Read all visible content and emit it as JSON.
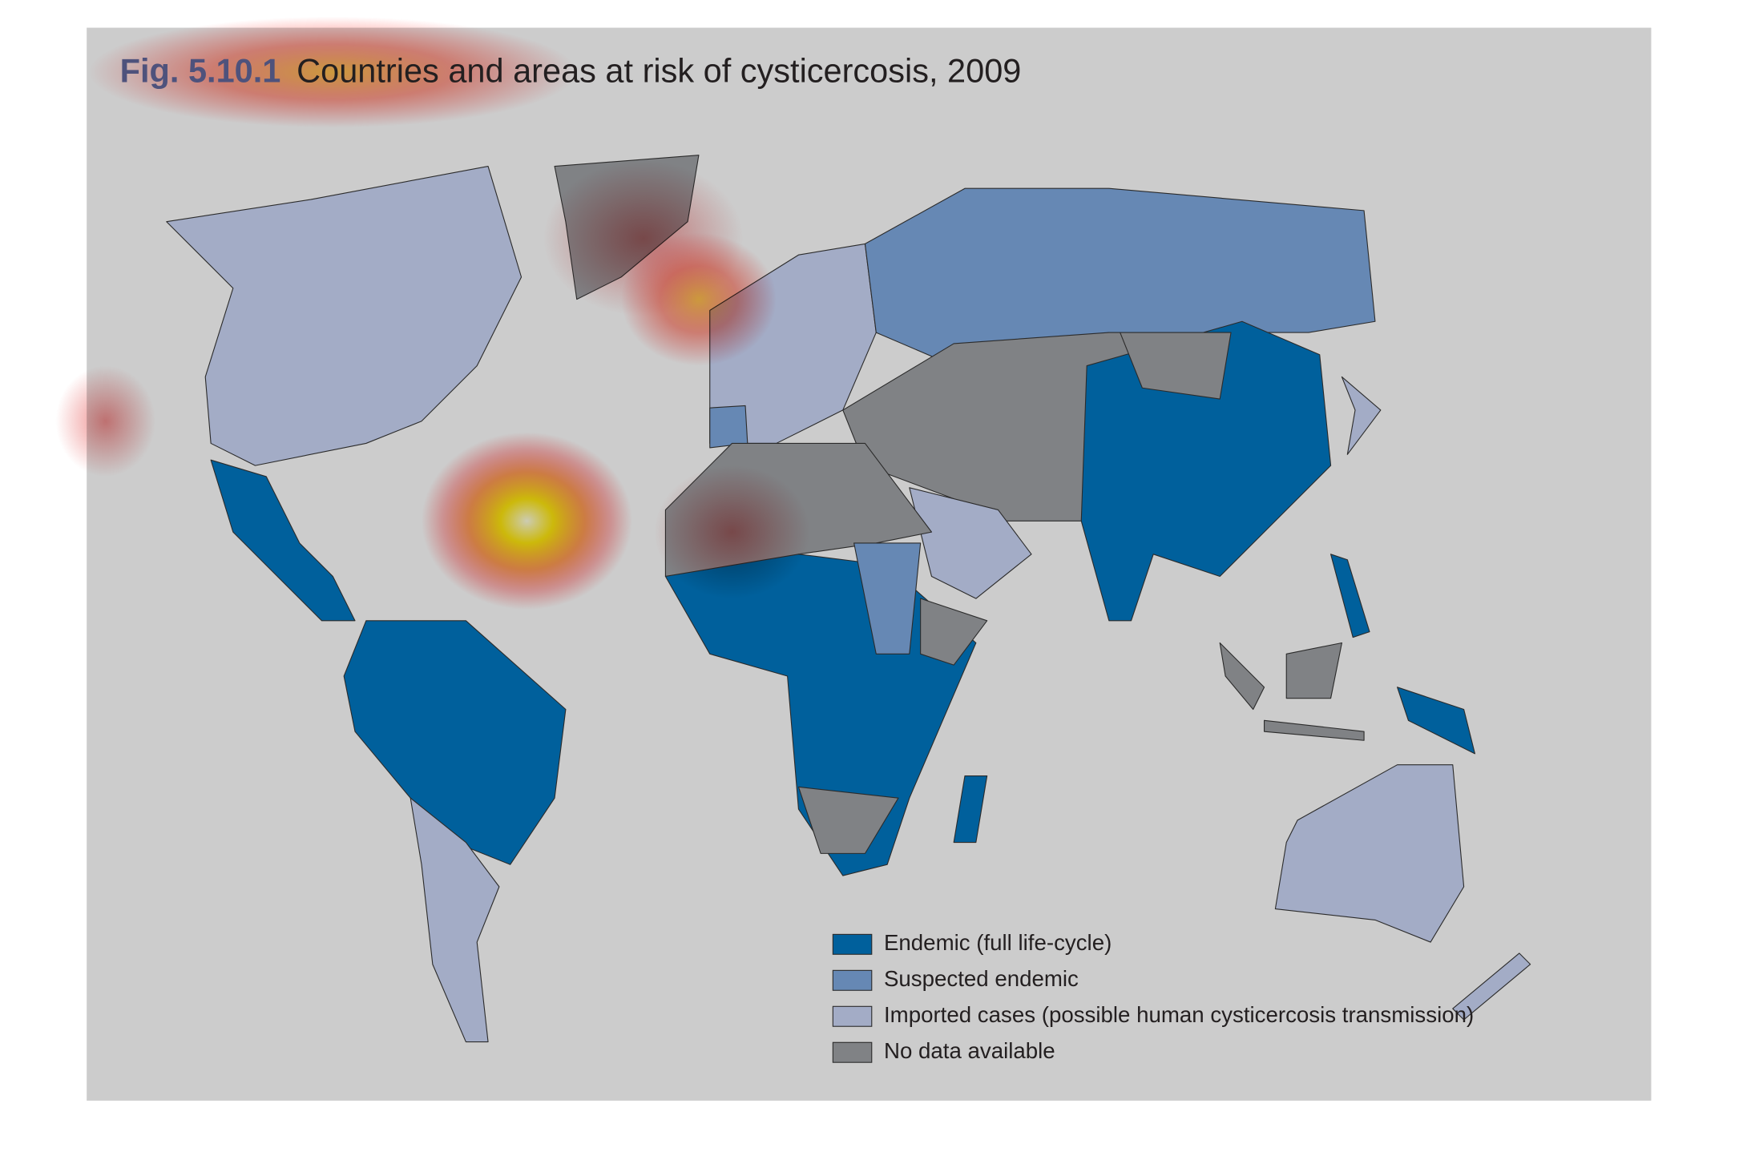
{
  "header": {
    "label": "Fig. 5.10.1",
    "title": "Countries and areas at risk of cysticercosis, 2009"
  },
  "legend": {
    "items": [
      {
        "label": "Endemic (full life-cycle)",
        "color": "#00609c"
      },
      {
        "label": "Suspected endemic",
        "color": "#6688b4"
      },
      {
        "label": "Imported cases (possible human cysticercosis transmission)",
        "color": "#a3acc6"
      },
      {
        "label": "No data available",
        "color": "#808285"
      }
    ]
  }
}
